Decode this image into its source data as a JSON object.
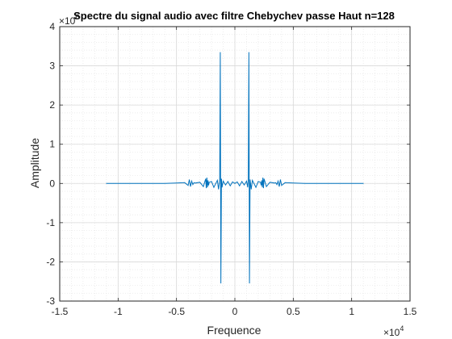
{
  "chart_data": {
    "type": "line",
    "title": "Spectre du signal audio avec filtre Chebychev passe Haut n=128",
    "xlabel": "Frequence",
    "ylabel": "Amplitude",
    "x_exponent_base": "×10",
    "x_exponent": "4",
    "y_exponent_base": "×10",
    "y_exponent": "6",
    "xlim": [
      -15000,
      15000
    ],
    "ylim": [
      -3,
      4
    ],
    "xticks": [
      -15000,
      -10000,
      -5000,
      0,
      5000,
      10000,
      15000
    ],
    "xtick_labels": [
      "-1.5",
      "-1",
      "-0.5",
      "0",
      "0.5",
      "1",
      "1.5"
    ],
    "yticks": [
      -3,
      -2,
      -1,
      0,
      1,
      2,
      3,
      4
    ],
    "ytick_labels": [
      "-3",
      "-2",
      "-1",
      "0",
      "1",
      "2",
      "3",
      "4"
    ],
    "grid": true,
    "minor_grid": true,
    "line_color": "#0072BD",
    "series": [
      {
        "x": [
          -11025,
          -8000,
          -6000,
          -5000,
          -4300,
          -4000,
          -3900,
          -3800,
          -3700,
          -3600,
          -3500,
          -3400,
          -3000,
          -2700,
          -2500,
          -2450,
          -2400,
          -2350,
          -2300,
          -2250,
          -2200,
          -2000,
          -1800,
          -1500,
          -1400,
          -1300,
          -1250,
          -1200,
          -1150,
          -1100,
          -1000,
          -800,
          -600,
          -400,
          -200,
          0,
          200,
          400,
          600,
          800,
          1000,
          1100,
          1150,
          1200,
          1250,
          1300,
          1400,
          1500,
          1800,
          2000,
          2200,
          2250,
          2300,
          2350,
          2400,
          2450,
          2500,
          2700,
          3000,
          3400,
          3500,
          3600,
          3700,
          3800,
          3900,
          4000,
          4300,
          5000,
          6000,
          8000,
          11025
        ],
        "y": [
          0,
          0,
          0,
          0.01,
          0.02,
          -0.05,
          0.1,
          -0.08,
          0.06,
          -0.03,
          0.02,
          0.01,
          0.03,
          -0.08,
          0.12,
          -0.12,
          0.15,
          -0.1,
          0.08,
          -0.05,
          0.03,
          0.05,
          -0.1,
          0.08,
          -0.15,
          0.1,
          3.35,
          -2.55,
          0.12,
          -0.1,
          0.06,
          -0.04,
          0.05,
          -0.06,
          0.04,
          0.0,
          0.04,
          -0.06,
          0.05,
          -0.04,
          0.06,
          -0.1,
          0.12,
          3.35,
          -2.55,
          0.1,
          -0.15,
          0.08,
          -0.1,
          0.05,
          0.03,
          -0.05,
          0.08,
          -0.1,
          0.15,
          -0.12,
          0.12,
          -0.08,
          0.03,
          0.01,
          0.02,
          -0.03,
          0.06,
          -0.08,
          0.1,
          -0.05,
          0.02,
          0.01,
          0,
          0,
          0
        ]
      }
    ]
  }
}
